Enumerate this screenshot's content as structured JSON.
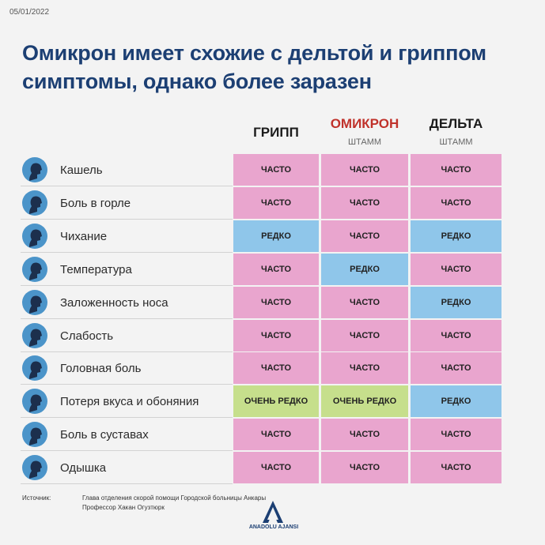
{
  "date": "05/01/2022",
  "title": [
    "Омикрон имеет схожие с дельтой и гриппом",
    "симптомы, однако более заразен"
  ],
  "columns": [
    {
      "name": "ГРИПП",
      "color": "#1b1b1b"
    },
    {
      "name": "ОМИКРОН",
      "sub": "ШТАММ",
      "color": "#c0322b"
    },
    {
      "name": "ДЕЛЬТА",
      "sub": "ШТАММ",
      "color": "#1b1b1b"
    }
  ],
  "cell_colors": {
    "ЧАСТО": "#e9a5ce",
    "РЕДКО": "#8fc6ea",
    "ОЧЕНЬ РЕДКО": "#c6df8c"
  },
  "rows": [
    {
      "symptom": "Кашель",
      "cells": [
        "ЧАСТО",
        "ЧАСТО",
        "ЧАСТО"
      ]
    },
    {
      "symptom": "Боль в горле",
      "cells": [
        "ЧАСТО",
        "ЧАСТО",
        "ЧАСТО"
      ]
    },
    {
      "symptom": "Чихание",
      "cells": [
        "РЕДКО",
        "ЧАСТО",
        "РЕДКО"
      ]
    },
    {
      "symptom": "Температура",
      "cells": [
        "ЧАСТО",
        "РЕДКО",
        "ЧАСТО"
      ]
    },
    {
      "symptom": "Заложенность носа",
      "cells": [
        "ЧАСТО",
        "ЧАСТО",
        "РЕДКО"
      ]
    },
    {
      "symptom": "Слабость",
      "cells": [
        "ЧАСТО",
        "ЧАСТО",
        "ЧАСТО"
      ]
    },
    {
      "symptom": "Головная боль",
      "cells": [
        "ЧАСТО",
        "ЧАСТО",
        "ЧАСТО"
      ]
    },
    {
      "symptom": "Потеря вкуса и обоняния",
      "cells": [
        "ОЧЕНЬ РЕДКО",
        "ОЧЕНЬ РЕДКО",
        "РЕДКО"
      ]
    },
    {
      "symptom": "Боль в суставах",
      "cells": [
        "ЧАСТО",
        "ЧАСТО",
        "ЧАСТО"
      ]
    },
    {
      "symptom": "Одышка",
      "cells": [
        "ЧАСТО",
        "ЧАСТО",
        "ЧАСТО"
      ]
    }
  ],
  "source": {
    "label": "Источник:",
    "lines": [
      "Глава отделения скорой помощи Городской больницы Анкары",
      "Профессор Хакан Огузтюрк"
    ]
  },
  "logo": "ANADOLU AJANSI"
}
